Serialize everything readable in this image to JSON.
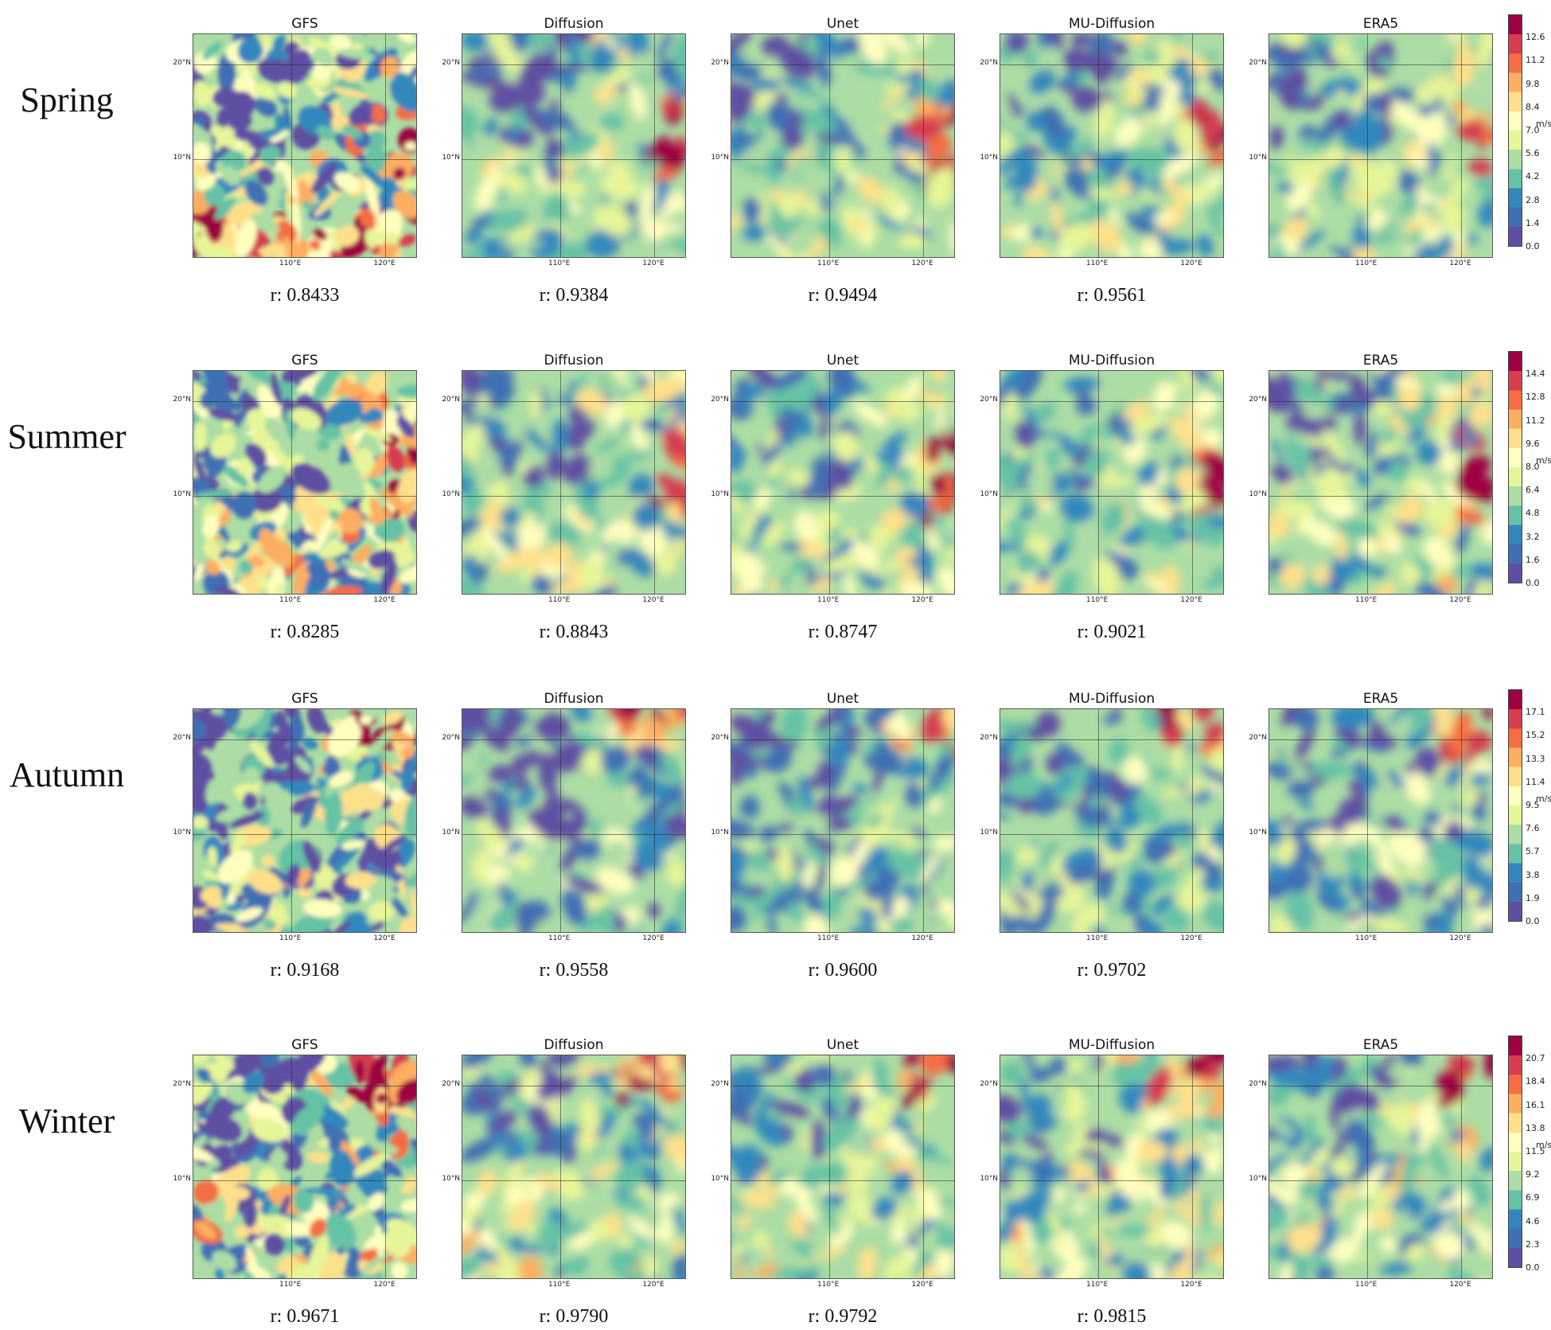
{
  "chart_data": {
    "type": "heatmap",
    "models": [
      "GFS",
      "Diffusion",
      "Unet",
      "MU-Diffusion",
      "ERA5"
    ],
    "lat_ticks": [
      "20°N",
      "10°N"
    ],
    "lon_ticks": [
      "110°E",
      "120°E"
    ],
    "colorbar_unit": "m/s",
    "colormap": [
      "#5e4fa2",
      "#3f6fb4",
      "#3288bd",
      "#66c2a5",
      "#abdda4",
      "#e6f598",
      "#ffffbf",
      "#fee08b",
      "#fdae61",
      "#f46d43",
      "#d53e4f",
      "#9e0142"
    ],
    "seasons": [
      {
        "name": "Spring",
        "colorbar_ticks": [
          "0.0",
          "1.4",
          "2.8",
          "4.2",
          "5.6",
          "7.0",
          "8.4",
          "9.8",
          "11.2",
          "12.6"
        ],
        "colorbar_max": 14.0,
        "r_values": [
          "r: 0.8433",
          "r: 0.9384",
          "r: 0.9494",
          "r: 0.9561"
        ]
      },
      {
        "name": "Summer",
        "colorbar_ticks": [
          "0.0",
          "1.6",
          "3.2",
          "4.8",
          "6.4",
          "8.0",
          "9.6",
          "11.2",
          "12.8",
          "14.4"
        ],
        "colorbar_max": 16.0,
        "r_values": [
          "r: 0.8285",
          "r: 0.8843",
          "r: 0.8747",
          "r: 0.9021"
        ]
      },
      {
        "name": "Autumn",
        "colorbar_ticks": [
          "0.0",
          "1.9",
          "3.8",
          "5.7",
          "7.6",
          "9.5",
          "11.4",
          "13.3",
          "15.2",
          "17.1"
        ],
        "colorbar_max": 19.0,
        "r_values": [
          "r: 0.9168",
          "r: 0.9558",
          "r: 0.9600",
          "r: 0.9702"
        ]
      },
      {
        "name": "Winter",
        "colorbar_ticks": [
          "0.0",
          "2.3",
          "4.6",
          "6.9",
          "9.2",
          "11.5",
          "13.8",
          "16.1",
          "18.4",
          "20.7"
        ],
        "colorbar_max": 23.0,
        "r_values": [
          "r: 0.9671",
          "r: 0.9790",
          "r: 0.9792",
          "r: 0.9815"
        ]
      }
    ]
  }
}
